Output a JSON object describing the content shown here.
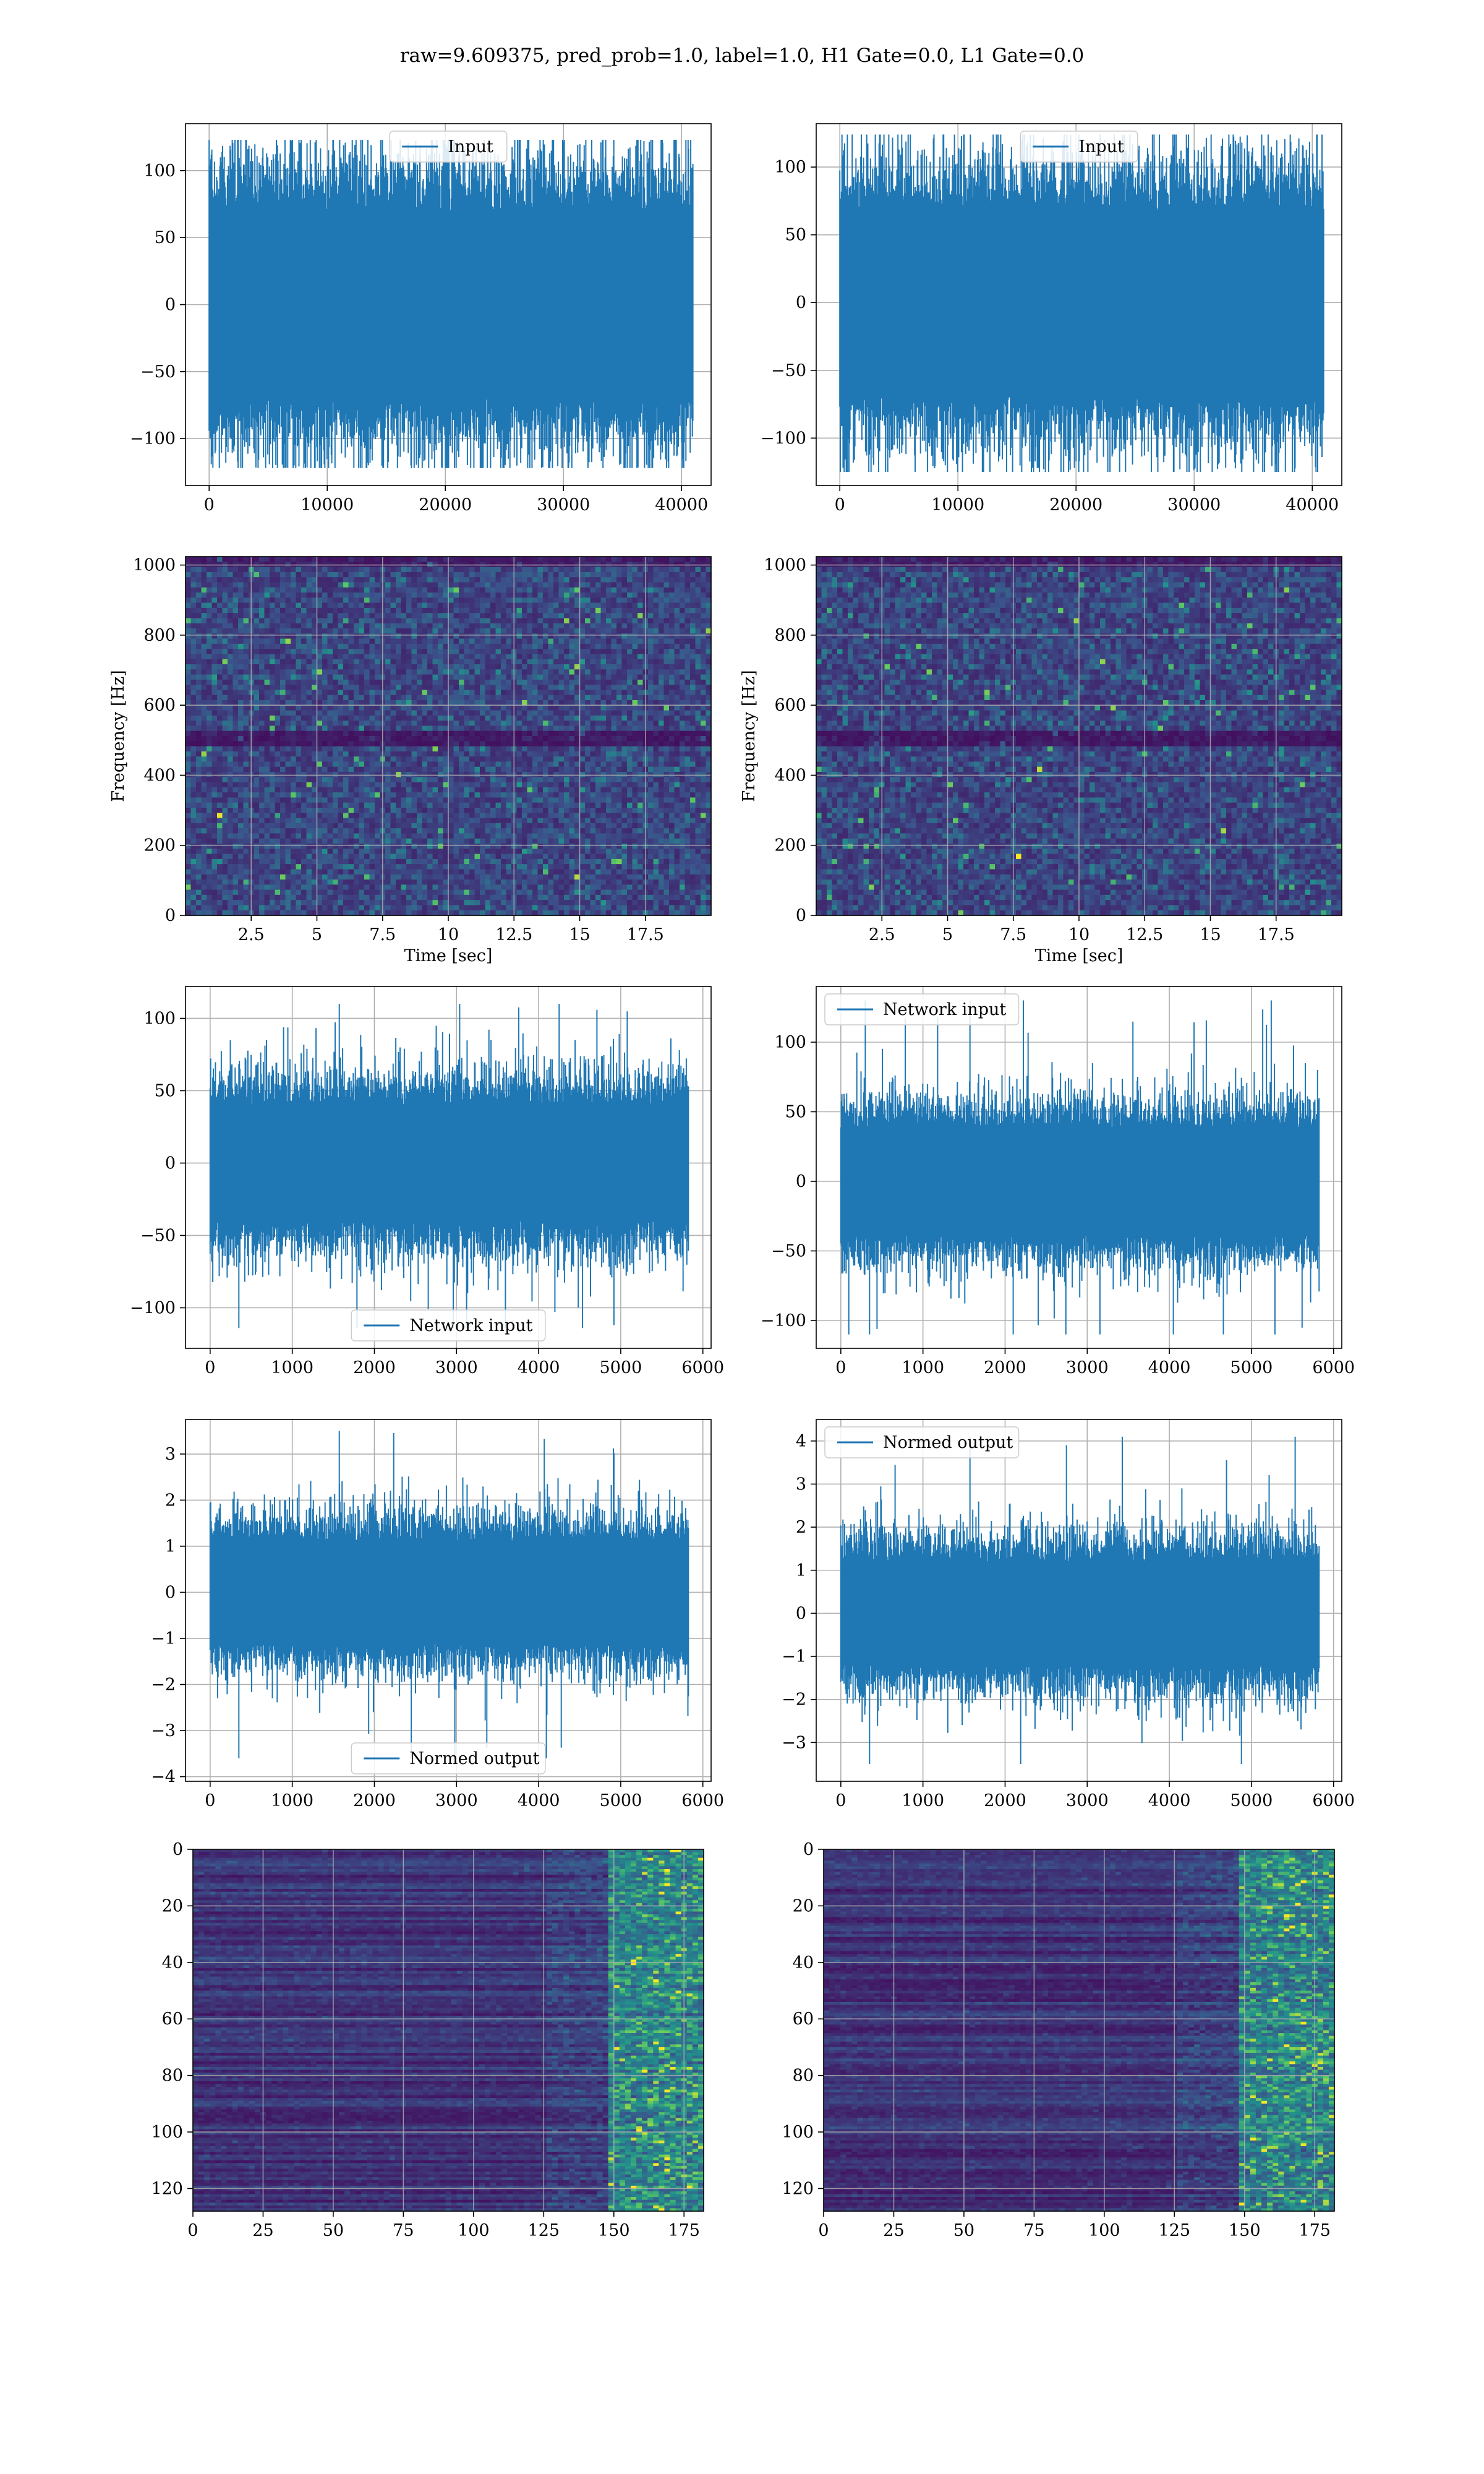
{
  "figure": {
    "suptitle": "raw=9.609375, pred_prob=1.0, label=1.0, H1 Gate=0.0, L1 Gate=0.0",
    "line_color": "#1f77b4",
    "grid_color": "#b0b0b0"
  },
  "chart_data": [
    {
      "type": "line",
      "legend": "Input",
      "legend_loc": "upper center",
      "xlim": [
        -2000,
        42500
      ],
      "ylim": [
        -135,
        135
      ],
      "xticks": [
        0,
        10000,
        20000,
        30000,
        40000
      ],
      "yticks": [
        -100,
        -50,
        0,
        50,
        100
      ],
      "x_range": [
        0,
        40960
      ],
      "band": [
        -70,
        70
      ],
      "peak_max": 123,
      "peak_min": -122
    },
    {
      "type": "line",
      "legend": "Input",
      "legend_loc": "upper center",
      "xlim": [
        -2000,
        42500
      ],
      "ylim": [
        -135,
        132
      ],
      "xticks": [
        0,
        10000,
        20000,
        30000,
        40000
      ],
      "yticks": [
        -100,
        -50,
        0,
        50,
        100
      ],
      "x_range": [
        0,
        40960
      ],
      "band": [
        -68,
        68
      ],
      "peak_max": 124,
      "peak_min": -125
    },
    {
      "type": "heatmap",
      "xlabel": "Time [sec]",
      "ylabel": "Frequency [Hz]",
      "xlim": [
        0,
        20
      ],
      "ylim": [
        0,
        1024
      ],
      "xticks": [
        2.5,
        5.0,
        7.5,
        10.0,
        12.5,
        15.0,
        17.5
      ],
      "yticks": [
        0,
        200,
        400,
        600,
        800,
        1000
      ],
      "colormap": "viridis",
      "dark_band": [
        480,
        520
      ]
    },
    {
      "type": "heatmap",
      "xlabel": "Time [sec]",
      "ylabel": "Frequency [Hz]",
      "xlim": [
        0,
        20
      ],
      "ylim": [
        0,
        1024
      ],
      "xticks": [
        2.5,
        5.0,
        7.5,
        10.0,
        12.5,
        15.0,
        17.5
      ],
      "yticks": [
        0,
        200,
        400,
        600,
        800,
        1000
      ],
      "colormap": "viridis",
      "dark_band": [
        480,
        520
      ]
    },
    {
      "type": "line",
      "legend": "Network input",
      "legend_loc": "lower center",
      "xlim": [
        -300,
        6100
      ],
      "ylim": [
        -128,
        122
      ],
      "xticks": [
        0,
        1000,
        2000,
        3000,
        4000,
        5000,
        6000
      ],
      "yticks": [
        -100,
        -50,
        0,
        50,
        100
      ],
      "x_range": [
        0,
        5824
      ],
      "band": [
        -40,
        40
      ],
      "peak_max": 110,
      "peak_min": -114
    },
    {
      "type": "line",
      "legend": "Network input",
      "legend_loc": "upper left",
      "xlim": [
        -300,
        6100
      ],
      "ylim": [
        -120,
        140
      ],
      "xticks": [
        0,
        1000,
        2000,
        3000,
        4000,
        5000,
        6000
      ],
      "yticks": [
        -100,
        -50,
        0,
        50,
        100
      ],
      "x_range": [
        0,
        5824
      ],
      "band": [
        -38,
        38
      ],
      "peak_max": 130,
      "peak_min": -110
    },
    {
      "type": "line",
      "legend": "Normed output",
      "legend_loc": "lower center",
      "xlim": [
        -300,
        6100
      ],
      "ylim": [
        -4.1,
        3.75
      ],
      "xticks": [
        0,
        1000,
        2000,
        3000,
        4000,
        5000,
        6000
      ],
      "yticks": [
        -4,
        -3,
        -2,
        -1,
        0,
        1,
        2,
        3
      ],
      "x_range": [
        0,
        5824
      ],
      "band": [
        -1.1,
        1.1
      ],
      "peak_max": 3.5,
      "peak_min": -3.6
    },
    {
      "type": "line",
      "legend": "Normed output",
      "legend_loc": "upper left",
      "xlim": [
        -300,
        6100
      ],
      "ylim": [
        -3.9,
        4.5
      ],
      "xticks": [
        0,
        1000,
        2000,
        3000,
        4000,
        5000,
        6000
      ],
      "yticks": [
        -3,
        -2,
        -1,
        0,
        1,
        2,
        3,
        4
      ],
      "x_range": [
        0,
        5824
      ],
      "band": [
        -1.2,
        1.2
      ],
      "peak_max": 4.1,
      "peak_min": -3.5
    },
    {
      "type": "heatmap",
      "xlim": [
        0,
        182
      ],
      "ylim": [
        128,
        0
      ],
      "xticks": [
        0,
        25,
        50,
        75,
        100,
        125,
        150,
        175
      ],
      "yticks": [
        0,
        20,
        40,
        60,
        80,
        100,
        120
      ],
      "colormap": "viridis",
      "bright_region": [
        148,
        182
      ]
    },
    {
      "type": "heatmap",
      "xlim": [
        0,
        182
      ],
      "ylim": [
        128,
        0
      ],
      "xticks": [
        0,
        25,
        50,
        75,
        100,
        125,
        150,
        175
      ],
      "yticks": [
        0,
        20,
        40,
        60,
        80,
        100,
        120
      ],
      "colormap": "viridis",
      "bright_region": [
        148,
        182
      ]
    }
  ]
}
